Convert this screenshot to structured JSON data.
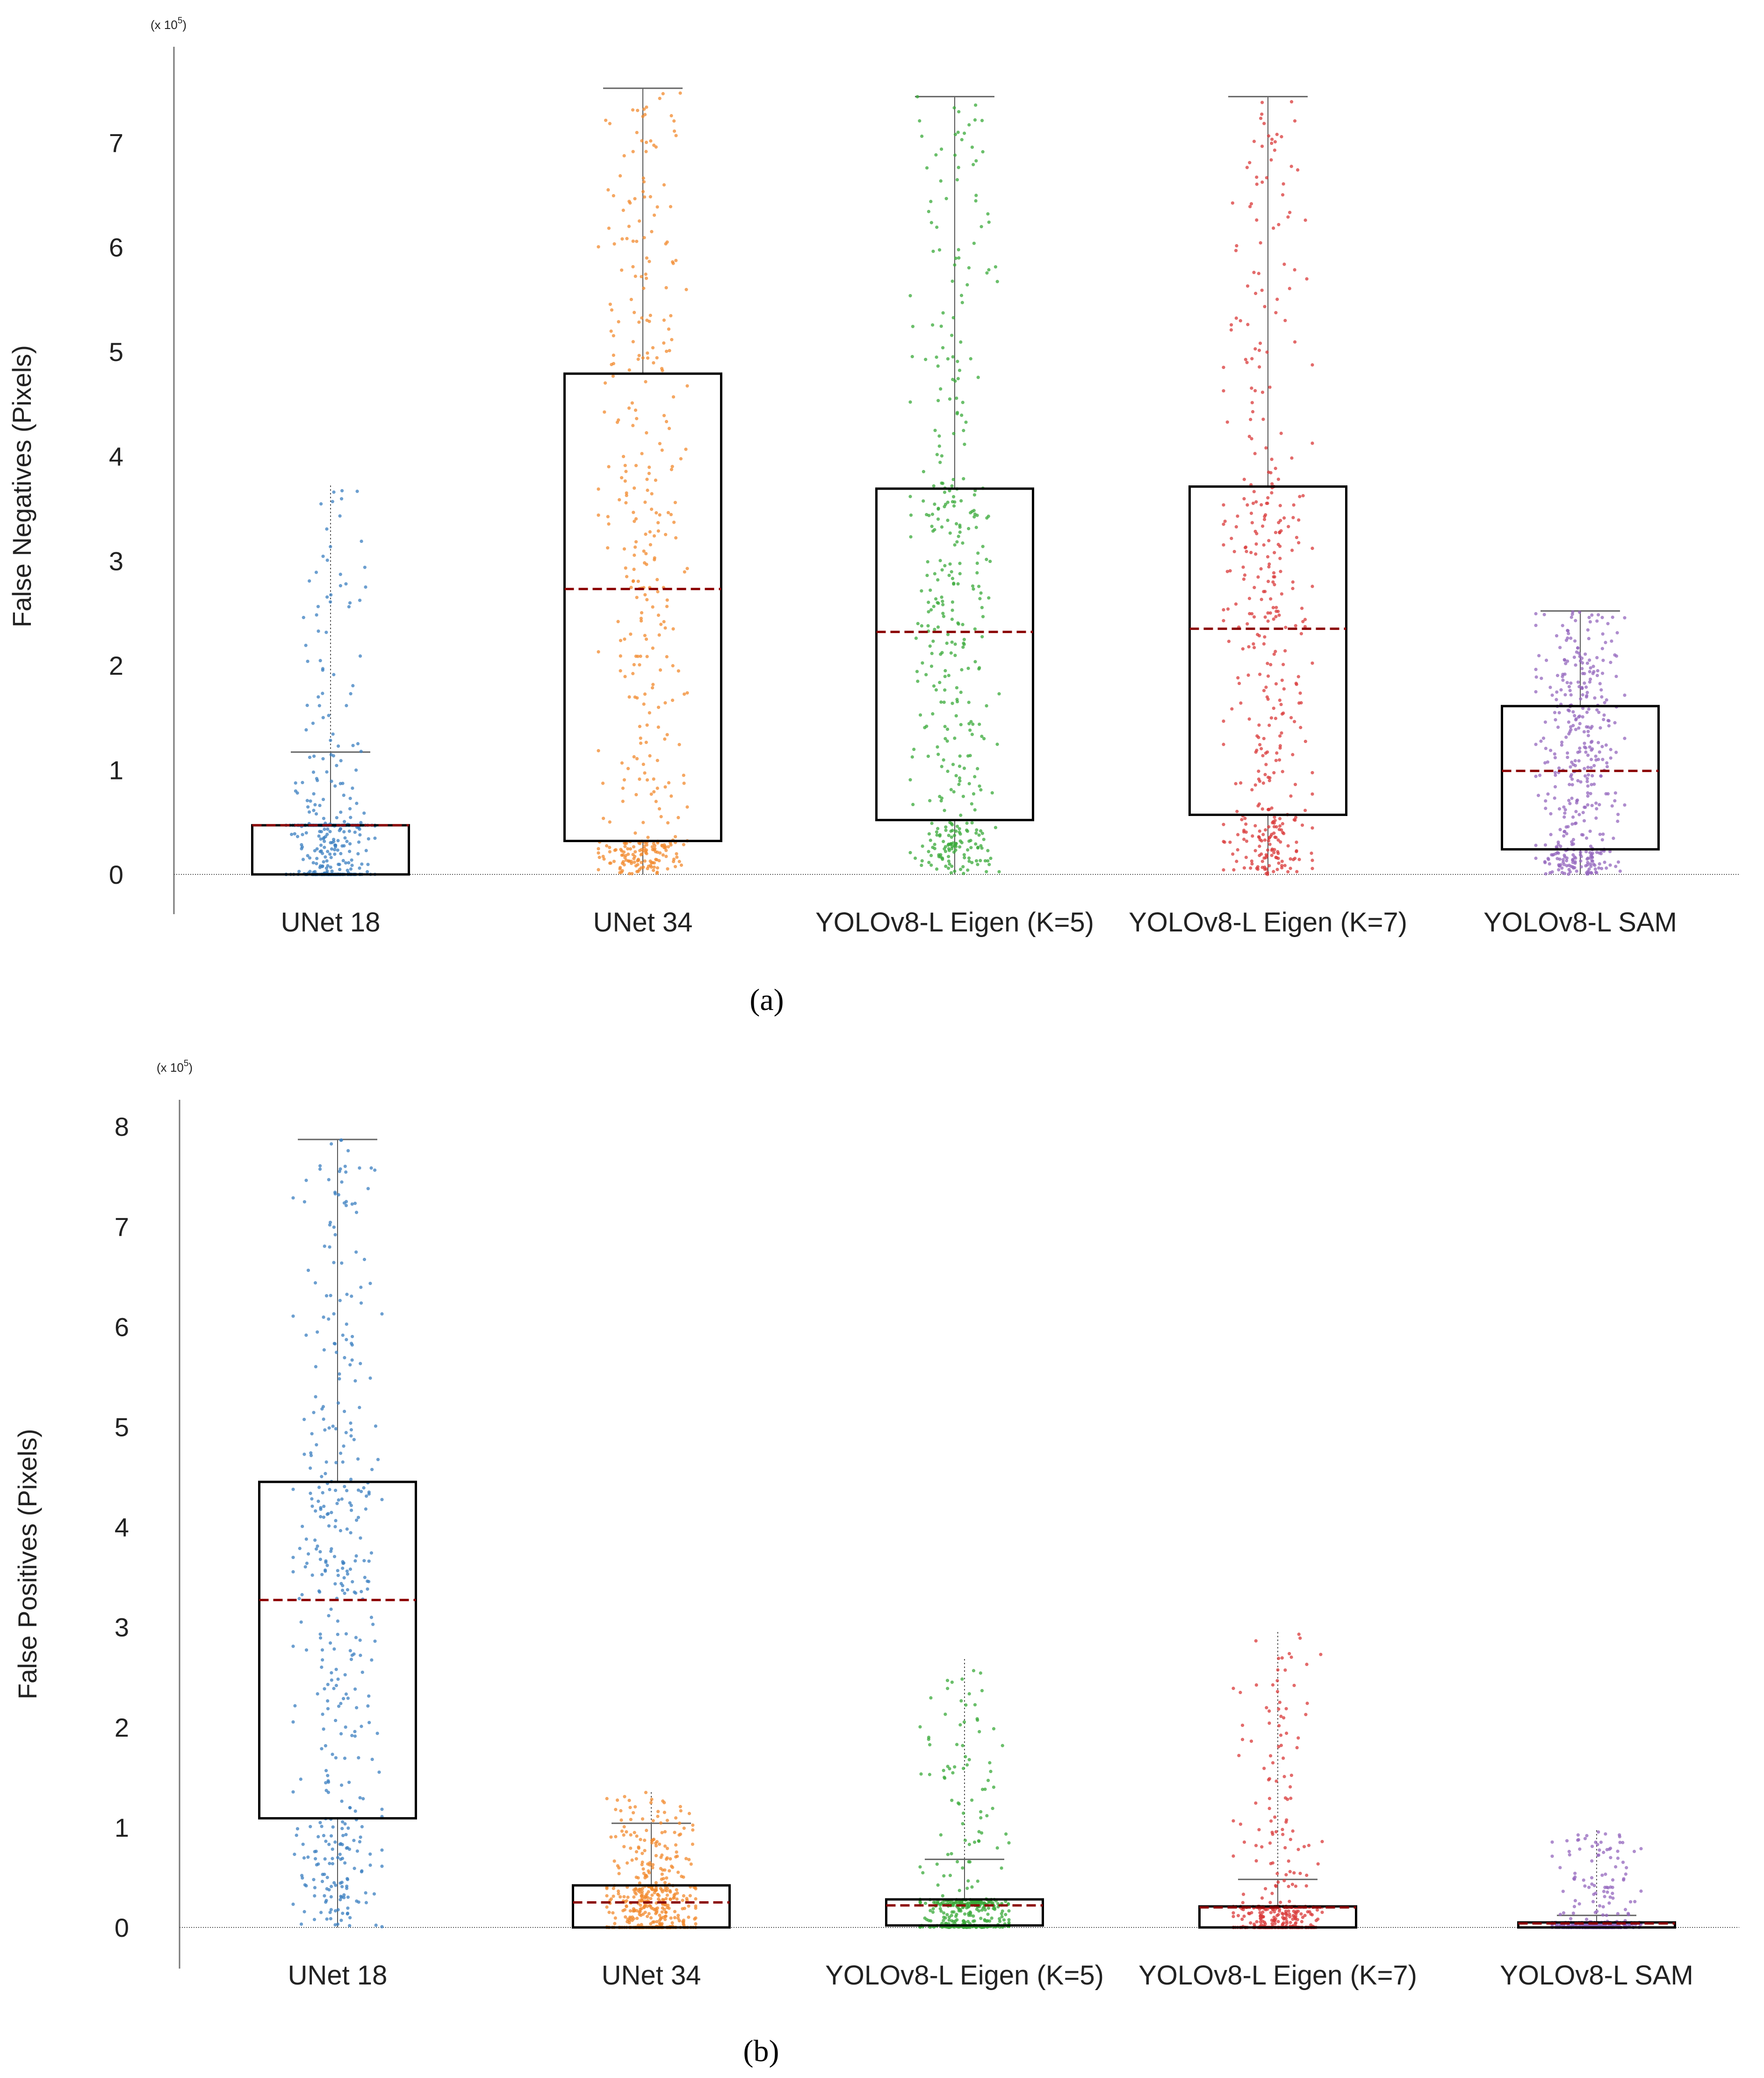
{
  "chart_data": [
    {
      "type": "box",
      "panel_label": "(a)",
      "ylabel": "False Negatives (Pixels)",
      "multiplier_text": "(x 10",
      "multiplier_exponent": "5",
      "multiplier_close": ")",
      "ylim": [
        0,
        7.6
      ],
      "yticks": [
        0,
        1,
        2,
        3,
        4,
        5,
        6,
        7
      ],
      "ytick_labels": [
        "0",
        "1",
        "2",
        "3",
        "4",
        "5",
        "6",
        "7"
      ],
      "categories": [
        "UNet 18",
        "UNet 34",
        "YOLOv8-L Eigen (K=5)",
        "YOLOv8-L Eigen (K=7)",
        "YOLOv8-L SAM"
      ],
      "colors": [
        "#3b7fc0",
        "#f28a2e",
        "#3aaa3a",
        "#d93a3a",
        "#9467bd"
      ],
      "boxes": [
        {
          "q1": 0.0,
          "median": 0.47,
          "q3": 0.47,
          "whisker_low": 0.0,
          "whisker_high": 1.17,
          "max_point": 3.72
        },
        {
          "q1": 0.32,
          "median": 2.73,
          "q3": 4.79,
          "whisker_low": 0.0,
          "whisker_high": 7.52,
          "max_point": 7.52
        },
        {
          "q1": 0.52,
          "median": 2.32,
          "q3": 3.69,
          "whisker_low": 0.0,
          "whisker_high": 7.44,
          "max_point": 7.44
        },
        {
          "q1": 0.57,
          "median": 2.35,
          "q3": 3.71,
          "whisker_low": 0.0,
          "whisker_high": 7.44,
          "max_point": 7.44
        },
        {
          "q1": 0.24,
          "median": 0.99,
          "q3": 1.61,
          "whisker_low": 0.0,
          "whisker_high": 2.52,
          "max_point": 2.52
        }
      ]
    },
    {
      "type": "box",
      "panel_label": "(b)",
      "ylabel": "False Positives (Pixels)",
      "multiplier_text": "(x 10",
      "multiplier_exponent": "5",
      "multiplier_close": ")",
      "ylim": [
        0,
        8.2
      ],
      "yticks": [
        0,
        1,
        2,
        3,
        4,
        5,
        6,
        7,
        8
      ],
      "ytick_labels": [
        "0",
        "1",
        "2",
        "3",
        "4",
        "5",
        "6",
        "7",
        "8"
      ],
      "categories": [
        "UNet 18",
        "UNet 34",
        "YOLOv8-L Eigen (K=5)",
        "YOLOv8-L Eigen (K=7)",
        "YOLOv8-L SAM"
      ],
      "colors": [
        "#3b7fc0",
        "#f28a2e",
        "#3aaa3a",
        "#d93a3a",
        "#9467bd"
      ],
      "boxes": [
        {
          "q1": 1.09,
          "median": 3.27,
          "q3": 4.45,
          "whisker_low": 0.0,
          "whisker_high": 7.87,
          "max_point": 7.87
        },
        {
          "q1": 0.0,
          "median": 0.25,
          "q3": 0.42,
          "whisker_low": 0.0,
          "whisker_high": 1.04,
          "max_point": 1.35
        },
        {
          "q1": 0.02,
          "median": 0.22,
          "q3": 0.28,
          "whisker_low": 0.0,
          "whisker_high": 0.68,
          "max_point": 2.68
        },
        {
          "q1": 0.0,
          "median": 0.2,
          "q3": 0.21,
          "whisker_low": 0.0,
          "whisker_high": 0.48,
          "max_point": 2.95
        },
        {
          "q1": 0.0,
          "median": 0.04,
          "q3": 0.05,
          "whisker_low": 0.0,
          "whisker_high": 0.12,
          "max_point": 0.97
        }
      ]
    }
  ]
}
